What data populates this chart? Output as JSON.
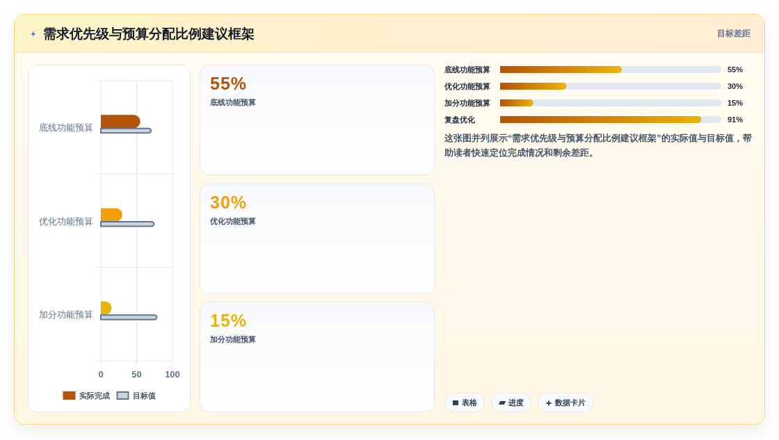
{
  "chart_data": [
    {
      "type": "bar",
      "orientation": "horizontal",
      "title": "需求优先级与预算分配比例建议框架",
      "categories": [
        "底线功能预算",
        "优化功能预算",
        "加分功能预算"
      ],
      "series": [
        {
          "name": "实际完成",
          "color": "#b45309",
          "colors": [
            "#b45309",
            "#f59e0b",
            "#eab308"
          ],
          "values": [
            55,
            30,
            15
          ]
        },
        {
          "name": "目标值",
          "color": "#cbd5e1",
          "values": [
            70,
            74,
            78
          ]
        }
      ],
      "xlim": [
        0,
        100
      ],
      "xticks": [
        0,
        50,
        100
      ],
      "grid": true,
      "legend": "bottom"
    },
    {
      "type": "other",
      "categories": [
        "底线功能预算",
        "优化功能预算",
        "加分功能预算"
      ],
      "value_labels": [
        "55%",
        "30%",
        "15%"
      ]
    },
    {
      "type": "bar",
      "orientation": "horizontal",
      "categories": [
        "底线功能预算",
        "优化功能预算",
        "加分功能预算",
        "复盘优化"
      ],
      "series": [
        {
          "color": "#b45309",
          "values": [
            55,
            30,
            15,
            91
          ],
          "value_labels": [
            "55%",
            "30%",
            "15%",
            "91%"
          ]
        }
      ],
      "xlim": [
        0,
        100
      ],
      "annotations": [
        "目标差距",
        "这张图并列展示“需求优先级与预算分配比例建议框架”的实际值与目标值，帮助读者快速定位完成情况和剩余差距。",
        "表格",
        "进度",
        "数据卡片"
      ]
    }
  ]
}
